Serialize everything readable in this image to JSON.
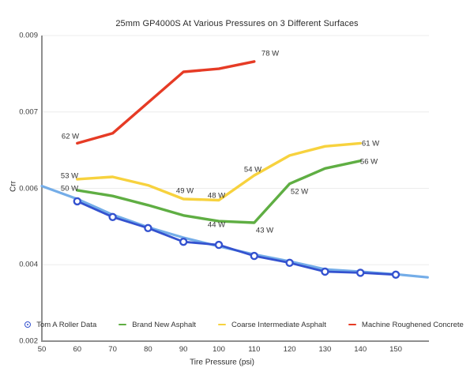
{
  "chart_data": {
    "type": "line",
    "title": "25mm GP4000S At Various Pressures on 3 Different Surfaces",
    "xlabel": "Tire Pressure (psi)",
    "ylabel": "Crr",
    "x_ticks": [
      50,
      60,
      70,
      80,
      90,
      100,
      110,
      120,
      130,
      140,
      150
    ],
    "y_tick_labels": [
      "0.009",
      "0.007",
      "0.006",
      "0.004",
      "0.002"
    ],
    "y_tick_values": [
      0.009,
      0.007,
      0.006,
      0.004,
      0.002
    ],
    "axis_note": "y-axis tick labels are evenly spaced as rendered despite non-uniform value steps",
    "grid": true,
    "legend_position": "bottom",
    "series": [
      {
        "name": "Tom A Roller Data (trendline)",
        "color": "#74ade8",
        "marker": "none",
        "in_legend": false,
        "line_width": 3.2,
        "x": [
          50,
          60,
          70,
          80,
          90,
          100,
          110,
          120,
          130,
          140,
          150,
          159
        ],
        "values": [
          0.00603,
          0.00572,
          0.00531,
          0.00498,
          0.00471,
          0.00448,
          0.00427,
          0.00409,
          0.00388,
          0.00382,
          0.00375,
          0.00367
        ]
      },
      {
        "name": "Brand New Asphalt",
        "color": "#5fae43",
        "marker": "line",
        "in_legend": true,
        "line_width": 3.4,
        "x": [
          60,
          70,
          80,
          90,
          100,
          110,
          120,
          130,
          140
        ],
        "values": [
          0.00595,
          0.0058,
          0.00556,
          0.00529,
          0.00514,
          0.0051,
          0.00606,
          0.00626,
          0.00636
        ]
      },
      {
        "name": "Coarse Intermediate Asphalt",
        "color": "#f7d23e",
        "marker": "line",
        "in_legend": true,
        "line_width": 3.4,
        "x": [
          60,
          70,
          80,
          90,
          100,
          110,
          120,
          130,
          140
        ],
        "values": [
          0.00612,
          0.00615,
          0.00604,
          0.00572,
          0.00569,
          0.00617,
          0.00643,
          0.00655,
          0.00659
        ]
      },
      {
        "name": "Machine Roughened Concrete",
        "color": "#e63b25",
        "marker": "line",
        "in_legend": true,
        "line_width": 3.4,
        "x": [
          60,
          70,
          90,
          100,
          110
        ],
        "values": [
          0.00659,
          0.00672,
          0.00805,
          0.00813,
          0.00832
        ]
      },
      {
        "name": "Tom A Roller Data",
        "color": "#3452cf",
        "marker": "circle",
        "in_legend": true,
        "line_width": 2.8,
        "x": [
          60,
          70,
          80,
          90,
          100,
          110,
          120,
          130,
          140,
          150
        ],
        "values": [
          0.00566,
          0.00525,
          0.00496,
          0.0046,
          0.00452,
          0.00423,
          0.00405,
          0.00382,
          0.00379,
          0.00374
        ]
      }
    ],
    "legend_order": [
      "Tom A Roller Data",
      "Brand New Asphalt",
      "Coarse Intermediate Asphalt",
      "Machine Roughened Concrete"
    ],
    "annotations": [
      {
        "text": "62 W",
        "x": 58.0,
        "y": 0.00668
      },
      {
        "text": "78 W",
        "x": 114.5,
        "y": 0.00852
      },
      {
        "text": "53 W",
        "x": 57.8,
        "y": 0.00616
      },
      {
        "text": "50 W",
        "x": 57.8,
        "y": 0.00599
      },
      {
        "text": "49 W",
        "x": 90.4,
        "y": 0.00593
      },
      {
        "text": "48 W",
        "x": 99.3,
        "y": 0.0058
      },
      {
        "text": "54 W",
        "x": 109.6,
        "y": 0.00624
      },
      {
        "text": "44 W",
        "x": 99.3,
        "y": 0.00504
      },
      {
        "text": "43 W",
        "x": 112.9,
        "y": 0.00489
      },
      {
        "text": "52 W",
        "x": 122.7,
        "y": 0.00591
      },
      {
        "text": "61 W",
        "x": 142.9,
        "y": 0.00658
      },
      {
        "text": "56 W",
        "x": 142.4,
        "y": 0.00635
      }
    ],
    "colors": {
      "grid": "#ececec",
      "axis": "#8f8f8f",
      "text": "#333333",
      "marker_fill": "#ffffff"
    }
  }
}
